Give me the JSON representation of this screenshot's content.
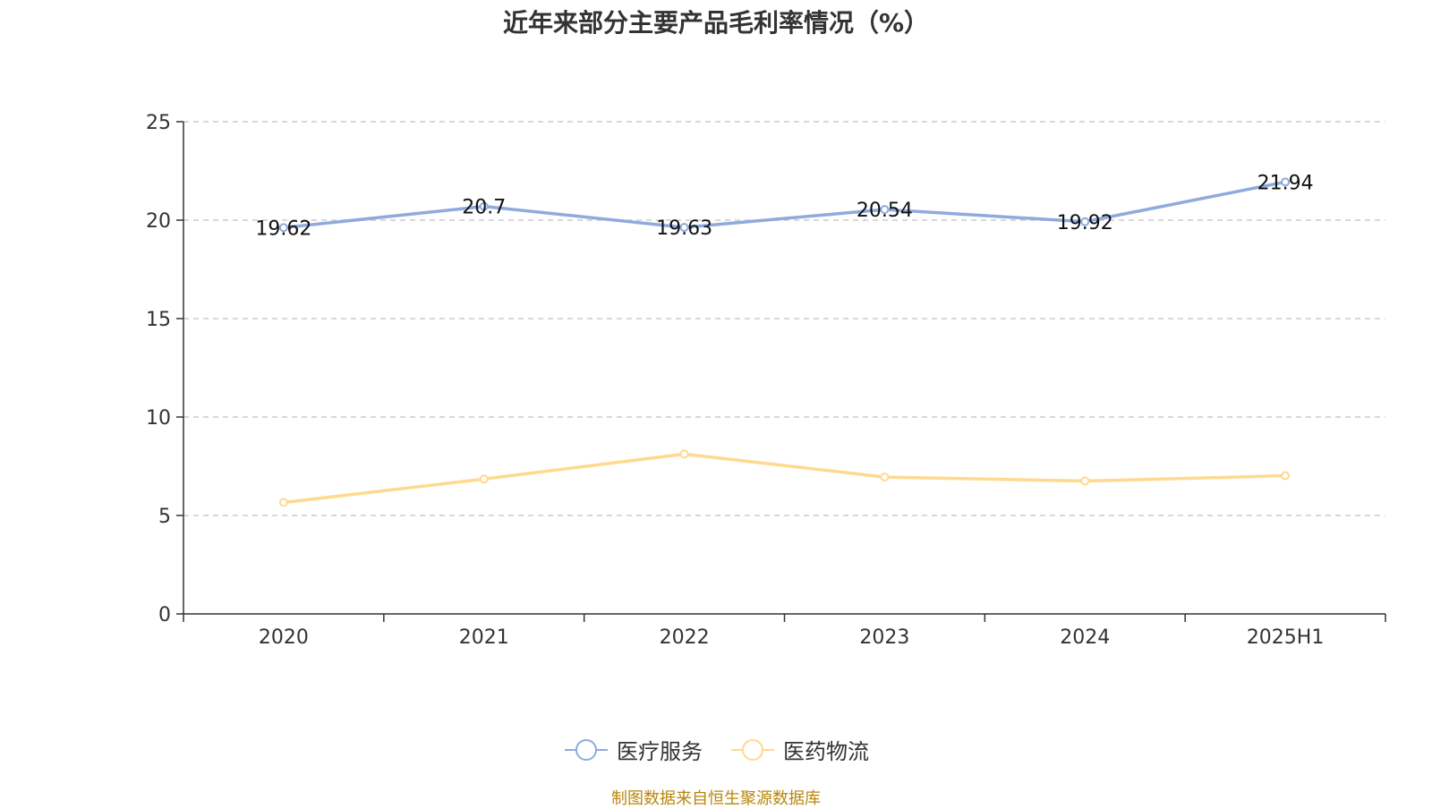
{
  "title": "近年来部分主要产品毛利率情况（%）",
  "source": "制图数据来自恒生聚源数据库",
  "chart_data": {
    "type": "line",
    "categories": [
      "2020",
      "2021",
      "2022",
      "2023",
      "2024",
      "2025H1"
    ],
    "series": [
      {
        "name": "医疗服务",
        "values": [
          19.62,
          20.7,
          19.63,
          20.54,
          19.92,
          21.94
        ],
        "color": "#8faadc",
        "labels_shown": true
      },
      {
        "name": "医药物流",
        "values": [
          5.66,
          6.85,
          8.12,
          6.95,
          6.75,
          7.02
        ],
        "color": "#ffd98e",
        "labels_shown": false
      }
    ],
    "yticks": [
      0,
      5,
      10,
      15,
      20,
      25
    ],
    "ylim": [
      0,
      25
    ],
    "grid": "horizontal dashed",
    "legend": "bottom-center"
  }
}
